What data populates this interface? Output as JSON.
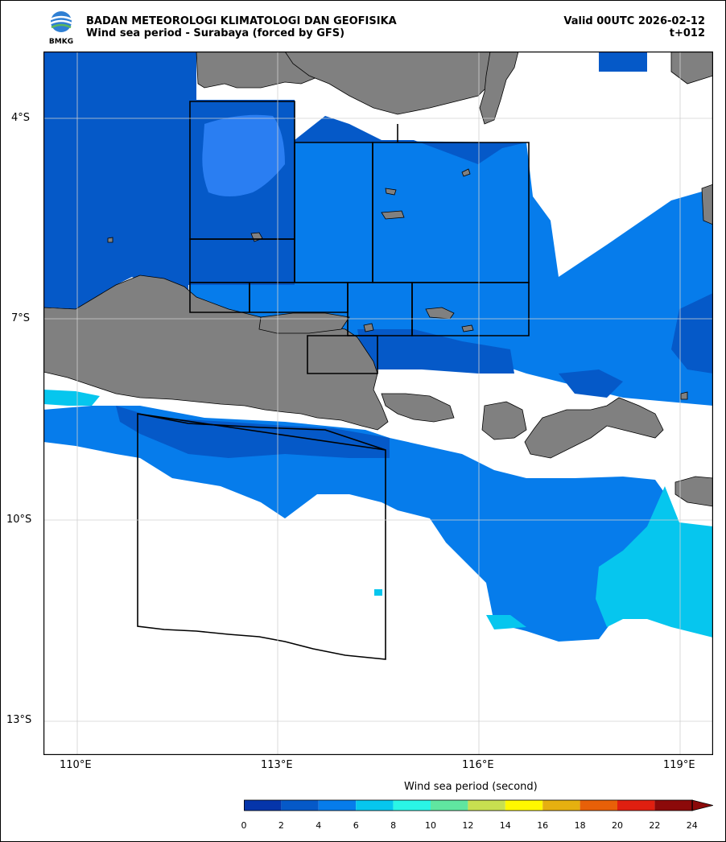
{
  "header": {
    "agency": "BADAN METEOROLOGI KLIMATOLOGI DAN GEOFISIKA",
    "subtitle": "Wind sea period - Surabaya (forced by GFS)",
    "valid": "Valid 00UTC 2026-02-12",
    "lead": "t+012"
  },
  "logo": {
    "text": "BMKG",
    "icon": "bmkg-logo-icon"
  },
  "axes": {
    "lat_ticks": [
      "4°S",
      "7°S",
      "10°S",
      "13°S"
    ],
    "lon_ticks": [
      "110°E",
      "113°E",
      "116°E",
      "119°E"
    ],
    "lat_range": [
      -13.5,
      -3.0
    ],
    "lon_range": [
      109.5,
      119.5
    ],
    "grid": true
  },
  "colorbar": {
    "label": "Wind sea period (second)",
    "ticks": [
      "0",
      "2",
      "4",
      "6",
      "8",
      "10",
      "12",
      "14",
      "16",
      "18",
      "20",
      "22",
      "24"
    ],
    "colors": [
      "#0535aa",
      "#0559c8",
      "#067ceb",
      "#06c6ee",
      "#2af5e6",
      "#60e6a0",
      "#c8e050",
      "#fff800",
      "#e6b010",
      "#e86008",
      "#e01f10",
      "#8c0a0a"
    ],
    "extend": "max"
  },
  "colors": {
    "land": "#808080",
    "coast": "#000000",
    "grid": "#d9d9d9"
  }
}
